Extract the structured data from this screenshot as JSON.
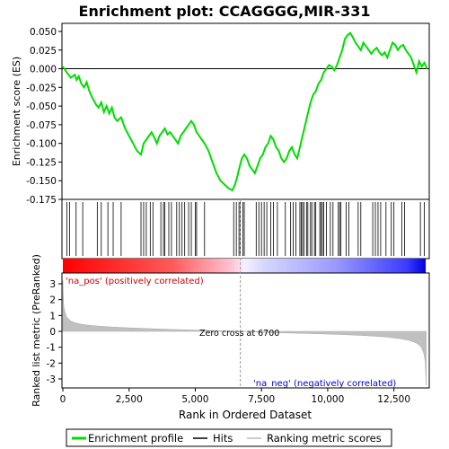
{
  "chart_data": {
    "type": "line",
    "title": "Enrichment plot: CCAGGGG,MIR-331",
    "panels": {
      "top": {
        "ylabel": "Enrichment score (ES)",
        "ylim": [
          -0.175,
          0.055
        ],
        "yticks": [
          0.05,
          0.025,
          0.0,
          -0.025,
          -0.05,
          -0.075,
          -0.1,
          -0.125,
          -0.15,
          -0.175
        ],
        "ytick_labels": [
          "0.050",
          "0.025",
          "0.000",
          "-0.025",
          "-0.050",
          "-0.075",
          "-0.100",
          "-0.125",
          "-0.150",
          "-0.175"
        ]
      },
      "bottom": {
        "ylabel": "Ranked list metric (PreRanked)",
        "ylim": [
          -3.6,
          3.6
        ],
        "yticks": [
          3,
          2,
          1,
          0,
          -1,
          -2,
          -3
        ],
        "ytick_labels": [
          "3",
          "2",
          "1",
          "0",
          "-1",
          "-2",
          "-3"
        ]
      }
    },
    "xlabel": "Rank in Ordered Dataset",
    "xlim": [
      0,
      14000
    ],
    "xticks": [
      0,
      2500,
      5000,
      7500,
      10000,
      12500
    ],
    "xtick_labels": [
      "0",
      "2,500",
      "5,000",
      "7,500",
      "10,000",
      "12,500"
    ],
    "series": [
      {
        "name": "Enrichment profile",
        "color": "#00dd00",
        "x": [
          0,
          150,
          300,
          450,
          520,
          600,
          700,
          800,
          900,
          1000,
          1100,
          1250,
          1350,
          1450,
          1550,
          1650,
          1750,
          1850,
          1950,
          2050,
          2200,
          2350,
          2500,
          2650,
          2800,
          2950,
          3050,
          3150,
          3250,
          3350,
          3450,
          3550,
          3650,
          3750,
          3850,
          3950,
          4050,
          4150,
          4250,
          4350,
          4450,
          4550,
          4650,
          4750,
          4850,
          4950,
          5050,
          5150,
          5250,
          5350,
          5500,
          5650,
          5800,
          5950,
          6100,
          6250,
          6400,
          6500,
          6580,
          6650,
          6700,
          6760,
          6850,
          6950,
          7050,
          7150,
          7250,
          7350,
          7450,
          7550,
          7650,
          7750,
          7850,
          7950,
          8050,
          8150,
          8250,
          8350,
          8450,
          8550,
          8650,
          8750,
          8850,
          8950,
          9050,
          9150,
          9250,
          9350,
          9450,
          9550,
          9650,
          9750,
          9850,
          9950,
          10050,
          10150,
          10250,
          10350,
          10450,
          10550,
          10650,
          10750,
          10850,
          10950,
          11050,
          11150,
          11250,
          11350,
          11450,
          11550,
          11650,
          11750,
          11850,
          11950,
          12050,
          12150,
          12250,
          12350,
          12450,
          12550,
          12650,
          12750,
          12850,
          12950,
          13050,
          13150,
          13250,
          13350,
          13450,
          13550,
          13650,
          13750
        ],
        "y": [
          0.003,
          -0.005,
          -0.012,
          -0.008,
          -0.015,
          -0.01,
          -0.02,
          -0.025,
          -0.018,
          -0.03,
          -0.038,
          -0.048,
          -0.052,
          -0.045,
          -0.058,
          -0.05,
          -0.06,
          -0.052,
          -0.065,
          -0.07,
          -0.065,
          -0.08,
          -0.09,
          -0.1,
          -0.11,
          -0.115,
          -0.1,
          -0.095,
          -0.09,
          -0.085,
          -0.092,
          -0.1,
          -0.09,
          -0.085,
          -0.08,
          -0.088,
          -0.085,
          -0.09,
          -0.095,
          -0.1,
          -0.09,
          -0.085,
          -0.08,
          -0.075,
          -0.07,
          -0.075,
          -0.085,
          -0.09,
          -0.095,
          -0.1,
          -0.11,
          -0.125,
          -0.14,
          -0.15,
          -0.155,
          -0.16,
          -0.163,
          -0.155,
          -0.145,
          -0.135,
          -0.128,
          -0.12,
          -0.115,
          -0.12,
          -0.13,
          -0.135,
          -0.14,
          -0.13,
          -0.12,
          -0.115,
          -0.105,
          -0.1,
          -0.09,
          -0.095,
          -0.105,
          -0.11,
          -0.12,
          -0.125,
          -0.12,
          -0.11,
          -0.105,
          -0.115,
          -0.12,
          -0.105,
          -0.09,
          -0.075,
          -0.06,
          -0.045,
          -0.035,
          -0.03,
          -0.02,
          -0.015,
          -0.005,
          0.0,
          0.005,
          0.003,
          -0.002,
          0.005,
          0.015,
          0.025,
          0.04,
          0.045,
          0.048,
          0.042,
          0.035,
          0.03,
          0.025,
          0.035,
          0.03,
          0.025,
          0.02,
          0.025,
          0.028,
          0.022,
          0.018,
          0.022,
          0.015,
          0.025,
          0.035,
          0.032,
          0.025,
          0.03,
          0.032,
          0.025,
          0.02,
          0.015,
          0.005,
          -0.005,
          0.01,
          0.003,
          0.008,
          0.0
        ]
      }
    ],
    "hits": [
      150,
      250,
      500,
      750,
      1300,
      1450,
      1700,
      1900,
      2200,
      2950,
      3050,
      3150,
      3300,
      3400,
      3700,
      3800,
      3850,
      4000,
      4100,
      4300,
      4400,
      4500,
      4600,
      4750,
      4850,
      5000,
      5050,
      5350,
      6450,
      6550,
      6650,
      6700,
      6800,
      6850,
      7300,
      7400,
      7500,
      7600,
      7700,
      7850,
      7950,
      8100,
      8400,
      8600,
      8700,
      8800,
      8950,
      9000,
      9050,
      9100,
      9200,
      9250,
      9350,
      9400,
      9500,
      9550,
      9700,
      9750,
      9800,
      9850,
      9950,
      10100,
      10200,
      10400,
      10450,
      10500,
      10700,
      10800,
      11150,
      11250,
      11700,
      11800,
      11900,
      12000,
      12200,
      12400,
      12500,
      12800,
      12900,
      13500,
      13650
    ],
    "ranked_metric": {
      "x": [
        0,
        30,
        80,
        150,
        300,
        500,
        800,
        1200,
        1800,
        2500,
        3500,
        4500,
        5500,
        6700,
        7500,
        8500,
        9500,
        10500,
        11500,
        12200,
        12800,
        13100,
        13300,
        13450,
        13550,
        13620,
        13680,
        13720
      ],
      "y": [
        3.2,
        1.6,
        1.2,
        0.9,
        0.65,
        0.52,
        0.42,
        0.35,
        0.28,
        0.22,
        0.16,
        0.1,
        0.06,
        0.0,
        -0.05,
        -0.1,
        -0.15,
        -0.2,
        -0.28,
        -0.35,
        -0.48,
        -0.58,
        -0.7,
        -0.85,
        -1.05,
        -1.35,
        -1.9,
        -3.4
      ]
    },
    "zero_cross": 6700,
    "annotations": {
      "zero_cross_label": "Zero cross at 6700",
      "pos_label": "'na_pos' (positively correlated)",
      "neg_label": "'na_neg' (negatively correlated)"
    },
    "legend": {
      "placement": "bottom",
      "items": [
        {
          "label": "Enrichment profile",
          "color": "#00dd00"
        },
        {
          "label": "Hits",
          "color": "#000000"
        },
        {
          "label": "Ranking metric scores",
          "color": "#bbbbbb"
        }
      ]
    },
    "grid": false
  }
}
